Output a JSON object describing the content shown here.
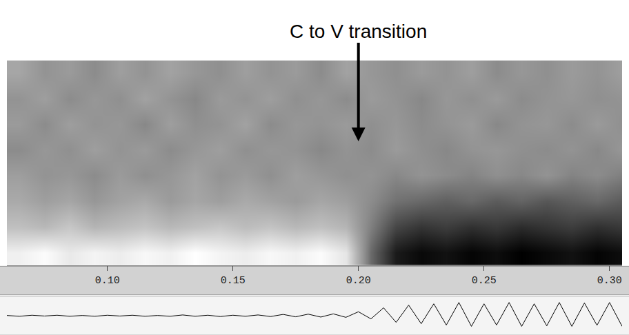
{
  "chart_data": {
    "type": "spectrogram",
    "annotations": [
      {
        "text": "C to V transition",
        "x": 0.2
      }
    ],
    "xlim": [
      0.06,
      0.305
    ],
    "xticks": [
      {
        "value": 0.1,
        "label": "0.10"
      },
      {
        "value": 0.15,
        "label": "0.15"
      },
      {
        "value": 0.2,
        "label": "0.20"
      },
      {
        "value": 0.25,
        "label": "0.25"
      },
      {
        "value": 0.3,
        "label": "0.30"
      }
    ],
    "tick_labels": "x",
    "spectrogram": {
      "x": [
        0.065,
        0.075,
        0.085,
        0.095,
        0.105,
        0.115,
        0.125,
        0.135,
        0.145,
        0.155,
        0.165,
        0.175,
        0.185,
        0.195,
        0.205,
        0.215,
        0.225,
        0.235,
        0.245,
        0.255,
        0.265,
        0.275,
        0.285,
        0.295,
        0.305
      ],
      "cells": [
        [
          25,
          22,
          27,
          24,
          26,
          23,
          25,
          21,
          24,
          26,
          23,
          25,
          22,
          28,
          60,
          78,
          82,
          80,
          83,
          81,
          84,
          82,
          80,
          83,
          81
        ],
        [
          38,
          40,
          36,
          41,
          39,
          37,
          40,
          38,
          36,
          39,
          37,
          40,
          38,
          41,
          55,
          68,
          72,
          70,
          73,
          71,
          74,
          72,
          70,
          73,
          71
        ],
        [
          44,
          47,
          45,
          49,
          46,
          44,
          48,
          45,
          47,
          44,
          46,
          48,
          45,
          47,
          52,
          58,
          60,
          62,
          60,
          63,
          61,
          64,
          62,
          60,
          63
        ],
        [
          47,
          50,
          49,
          52,
          48,
          51,
          49,
          46,
          50,
          48,
          51,
          47,
          49,
          51,
          50,
          53,
          50,
          52,
          54,
          51,
          53,
          50,
          54,
          52,
          55
        ],
        [
          52,
          49,
          51,
          47,
          50,
          48,
          52,
          49,
          47,
          51,
          49,
          50,
          53,
          50,
          52,
          48,
          51,
          53,
          50,
          49,
          51,
          52,
          50,
          53,
          49
        ],
        [
          48,
          52,
          47,
          50,
          49,
          53,
          47,
          51,
          50,
          46,
          52,
          49,
          50,
          48,
          51,
          49,
          52,
          50,
          48,
          53,
          50,
          49,
          52,
          48,
          51
        ],
        [
          50,
          47,
          52,
          49,
          51,
          46,
          50,
          53,
          48,
          50,
          47,
          51,
          49,
          52,
          48,
          50,
          53,
          49,
          51,
          48,
          52,
          50,
          49,
          51,
          50
        ],
        [
          45,
          50,
          48,
          52,
          47,
          50,
          46,
          49,
          51,
          47,
          50,
          48,
          52,
          46,
          49,
          51,
          48,
          50,
          47,
          52,
          49,
          51,
          48,
          50,
          47
        ]
      ]
    },
    "waveform": {
      "x": [
        0.06,
        0.065,
        0.07,
        0.075,
        0.08,
        0.085,
        0.09,
        0.095,
        0.1,
        0.105,
        0.11,
        0.115,
        0.12,
        0.125,
        0.13,
        0.135,
        0.14,
        0.145,
        0.15,
        0.155,
        0.16,
        0.165,
        0.17,
        0.175,
        0.18,
        0.185,
        0.19,
        0.195,
        0.2,
        0.205,
        0.21,
        0.215,
        0.22,
        0.225,
        0.23,
        0.235,
        0.24,
        0.245,
        0.25,
        0.255,
        0.26,
        0.265,
        0.27,
        0.275,
        0.28,
        0.285,
        0.29,
        0.295,
        0.3,
        0.305
      ],
      "values": [
        0.01,
        -0.02,
        0.02,
        -0.01,
        0.02,
        -0.02,
        0.01,
        -0.02,
        0.02,
        -0.01,
        0.02,
        -0.02,
        0.01,
        -0.02,
        0.03,
        -0.02,
        0.02,
        -0.03,
        0.02,
        -0.02,
        0.03,
        -0.03,
        0.05,
        -0.04,
        0.06,
        -0.05,
        0.07,
        -0.06,
        0.15,
        -0.12,
        0.3,
        -0.25,
        0.4,
        -0.3,
        0.45,
        -0.35,
        0.5,
        -0.4,
        0.45,
        -0.35,
        0.5,
        -0.4,
        0.45,
        -0.38,
        0.5,
        -0.4,
        0.48,
        -0.36,
        0.5,
        -0.4
      ],
      "ylim": [
        -0.6,
        0.6
      ],
      "color": "#000000"
    }
  }
}
